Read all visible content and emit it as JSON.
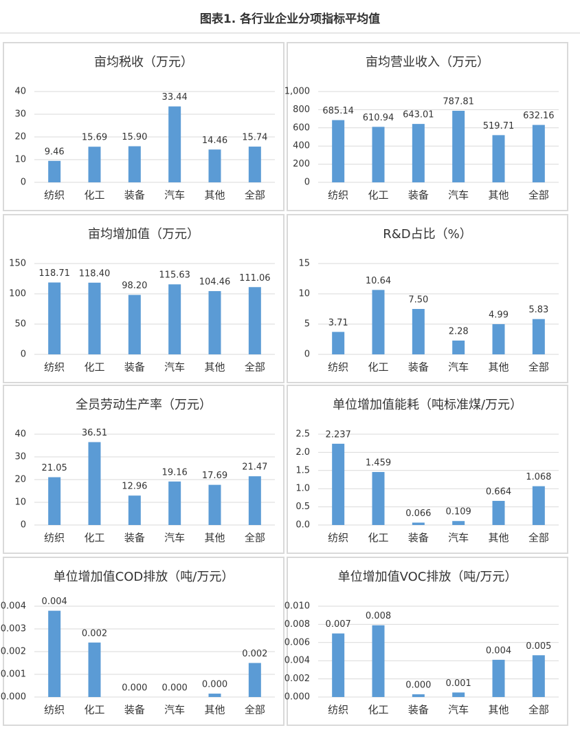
{
  "page_title": "图表1. 各行业企业分项指标平均值",
  "chart_data": [
    {
      "type": "bar",
      "title": "亩均税收（万元）",
      "categories": [
        "纺织",
        "化工",
        "装备",
        "汽车",
        "其他",
        "全部"
      ],
      "values": [
        9.46,
        15.69,
        15.9,
        33.44,
        14.46,
        15.74
      ],
      "value_labels": [
        "9.46",
        "15.69",
        "15.90",
        "33.44",
        "14.46",
        "15.74"
      ],
      "color": "#5b9bd5",
      "ylim": [
        0,
        40
      ],
      "yticks": [
        0,
        10,
        20,
        30,
        40
      ],
      "grid": true
    },
    {
      "type": "bar",
      "title": "亩均营业收入（万元）",
      "categories": [
        "纺织",
        "化工",
        "装备",
        "汽车",
        "其他",
        "全部"
      ],
      "values": [
        685.14,
        610.94,
        643.01,
        787.81,
        519.71,
        632.16
      ],
      "color": "#5b9bd5",
      "ylim": [
        0,
        1000
      ],
      "yticks": [
        0,
        200,
        400,
        600,
        800,
        {
          "value": 1000,
          "label": "1,000"
        }
      ],
      "grid": true
    },
    {
      "type": "bar",
      "title": "亩均增加值（万元）",
      "categories": [
        "纺织",
        "化工",
        "装备",
        "汽车",
        "其他",
        "全部"
      ],
      "values": [
        118.71,
        118.4,
        98.2,
        115.63,
        104.46,
        111.06
      ],
      "value_labels": [
        "118.71",
        "118.40",
        "98.20",
        "115.63",
        "104.46",
        "111.06"
      ],
      "color": "#5b9bd5",
      "ylim": [
        0,
        150
      ],
      "yticks": [
        0,
        50,
        100,
        150
      ],
      "grid": true
    },
    {
      "type": "bar",
      "title": "R&D占比（%）",
      "categories": [
        "纺织",
        "化工",
        "装备",
        "汽车",
        "其他",
        "全部"
      ],
      "values": [
        3.71,
        10.64,
        7.5,
        2.28,
        4.99,
        5.83
      ],
      "value_labels": [
        "3.71",
        "10.64",
        "7.50",
        "2.28",
        "4.99",
        "5.83"
      ],
      "color": "#5b9bd5",
      "ylim": [
        0,
        15
      ],
      "yticks": [
        0,
        5,
        10,
        15
      ],
      "grid": true
    },
    {
      "type": "bar",
      "title": "全员劳动生产率（万元）",
      "categories": [
        "纺织",
        "化工",
        "装备",
        "汽车",
        "其他",
        "全部"
      ],
      "values": [
        21.05,
        36.51,
        12.96,
        19.16,
        17.69,
        21.47
      ],
      "color": "#5b9bd5",
      "ylim": [
        0,
        40
      ],
      "yticks": [
        0,
        10,
        20,
        30,
        40
      ],
      "grid": true
    },
    {
      "type": "bar",
      "title": "单位增加值能耗（吨标准煤/万元）",
      "categories": [
        "纺织",
        "化工",
        "装备",
        "汽车",
        "其他",
        "全部"
      ],
      "values": [
        2.237,
        1.459,
        0.066,
        0.109,
        0.664,
        1.068
      ],
      "color": "#5b9bd5",
      "ylim": [
        0,
        2.5
      ],
      "yticks": [
        {
          "value": 0,
          "label": "0.0"
        },
        0.5,
        {
          "value": 1,
          "label": "1.0"
        },
        1.5,
        {
          "value": 2,
          "label": "2.0"
        },
        2.5
      ],
      "grid": true
    },
    {
      "type": "bar",
      "title": "单位增加值COD排放（吨/万元）",
      "categories": [
        "纺织",
        "化工",
        "装备",
        "汽车",
        "其他",
        "全部"
      ],
      "values": [
        0.0038,
        0.0024,
        0,
        0,
        0.00015,
        0.0015
      ],
      "value_labels": [
        "0.004",
        "0.002",
        "0.000",
        "0.000",
        "0.000",
        "0.002"
      ],
      "color": "#5b9bd5",
      "ylim": [
        0,
        0.004
      ],
      "yticks": [
        {
          "value": 0,
          "label": "0.000"
        },
        0.001,
        0.002,
        0.003,
        0.004
      ],
      "grid": true
    },
    {
      "type": "bar",
      "title": "单位增加值VOC排放（吨/万元）",
      "categories": [
        "纺织",
        "化工",
        "装备",
        "汽车",
        "其他",
        "全部"
      ],
      "values": [
        0.007,
        0.0079,
        0.0003,
        0.0005,
        0.0041,
        0.0046
      ],
      "value_labels": [
        "0.007",
        "0.008",
        "0.000",
        "0.001",
        "0.004",
        "0.005"
      ],
      "color": "#5b9bd5",
      "ylim": [
        0,
        0.01
      ],
      "yticks": [
        {
          "value": 0,
          "label": "0.000"
        },
        0.002,
        0.004,
        0.006,
        0.008,
        {
          "value": 0.01,
          "label": "0.010"
        }
      ],
      "grid": true
    }
  ]
}
